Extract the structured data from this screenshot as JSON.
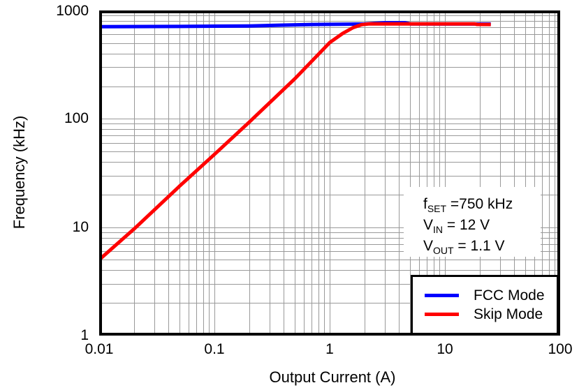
{
  "chart_data": {
    "type": "line",
    "title": "",
    "xlabel": "Output Current (A)",
    "ylabel": "Frequency (kHz)",
    "x_scale": "log",
    "y_scale": "log",
    "xlim": [
      0.01,
      100
    ],
    "ylim": [
      1,
      1000
    ],
    "x_ticks": [
      "0.01",
      "0.1",
      "1",
      "10",
      "100"
    ],
    "y_ticks": [
      "1000",
      "100",
      "10",
      "1"
    ],
    "grid": {
      "show": true,
      "minor": true,
      "color": "#999999"
    },
    "frame_color": "#000000",
    "series": [
      {
        "name": "FCC Mode",
        "color": "#0000ff",
        "points": [
          [
            0.01,
            708
          ],
          [
            0.05,
            712
          ],
          [
            0.1,
            716
          ],
          [
            0.2,
            720
          ],
          [
            0.4,
            733
          ],
          [
            0.7,
            742
          ],
          [
            1,
            745
          ],
          [
            1.5,
            748
          ],
          [
            2,
            750
          ],
          [
            3,
            770
          ],
          [
            4.5,
            770
          ],
          [
            5,
            752
          ],
          [
            10,
            750
          ],
          [
            25,
            750
          ]
        ]
      },
      {
        "name": "Skip Mode",
        "color": "#ff0000",
        "points": [
          [
            0.01,
            5
          ],
          [
            0.02,
            9.6
          ],
          [
            0.05,
            24
          ],
          [
            0.1,
            47
          ],
          [
            0.2,
            93
          ],
          [
            0.5,
            235
          ],
          [
            1,
            505
          ],
          [
            1.3,
            615
          ],
          [
            1.6,
            695
          ],
          [
            1.9,
            740
          ],
          [
            2.2,
            752
          ],
          [
            5,
            752
          ],
          [
            10,
            752
          ],
          [
            18,
            752
          ],
          [
            19,
            743
          ],
          [
            25,
            742
          ]
        ]
      }
    ],
    "legend": {
      "position": "bottom-right",
      "items": [
        "FCC Mode",
        "Skip Mode"
      ]
    },
    "annotation": {
      "lines": [
        {
          "base": "f",
          "sub": "SET",
          "rest": " =750 kHz"
        },
        {
          "base": "V",
          "sub": "IN",
          "rest": " = 12 V"
        },
        {
          "base": "V",
          "sub": "OUT",
          "rest": " = 1.1 V"
        }
      ]
    }
  }
}
